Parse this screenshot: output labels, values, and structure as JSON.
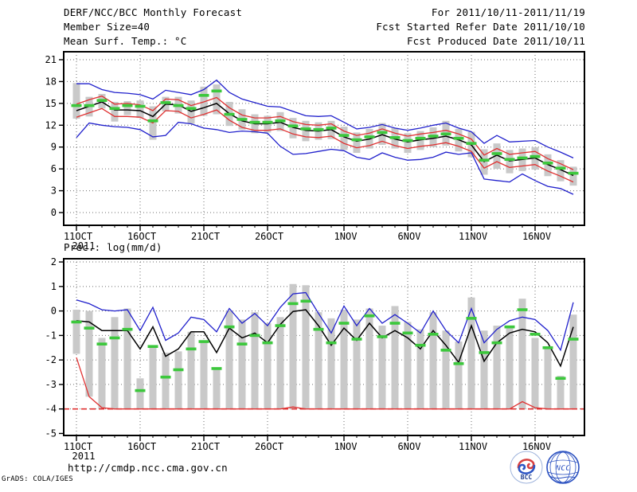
{
  "header": {
    "title": "DERF/NCC/BCC Monthly Forecast",
    "valid_range": "For 2011/10/11-2011/11/19",
    "member_size": "Member Size=40",
    "refer_date": "Fcst Started Refer Date 2011/10/10",
    "variable_label": "Mean Surf. Temp.: °C",
    "produced_date": "Fcst Produced Date 2011/10/11"
  },
  "footer": {
    "url": "http://cmdp.ncc.cma.gov.cn",
    "credit": "GrADS: COLA/IGES",
    "logos": [
      {
        "name": "bcc-logo",
        "label": "BCC"
      },
      {
        "name": "ncc-logo",
        "label": "NCC"
      }
    ]
  },
  "colors": {
    "bar": "#c9c9c9",
    "green_dash": "#3cc83c",
    "red": "#e03030",
    "blue": "#2020cc",
    "black": "#000000",
    "grid": "#6e6e6e"
  },
  "chart_data": [
    {
      "type": "line",
      "title": "Mean Surf. Temp.: °C",
      "ylabel": "°C",
      "ylim": [
        -1.8,
        22.1
      ],
      "yticks": [
        0,
        3,
        6,
        9,
        12,
        15,
        18,
        21
      ],
      "y_grid": [
        0,
        3,
        6,
        9,
        12,
        15,
        18,
        21
      ],
      "grid": true,
      "legend": "none",
      "x_categories": [
        "11OCT",
        "12OCT",
        "13OCT",
        "14OCT",
        "15OCT",
        "16OCT",
        "17OCT",
        "18OCT",
        "19OCT",
        "20OCT",
        "21OCT",
        "22OCT",
        "23OCT",
        "24OCT",
        "25OCT",
        "26OCT",
        "27OCT",
        "28OCT",
        "29OCT",
        "30OCT",
        "31OCT",
        "1NOV",
        "2NOV",
        "3NOV",
        "4NOV",
        "5NOV",
        "6NOV",
        "7NOV",
        "8NOV",
        "9NOV",
        "10NOV",
        "11NOV",
        "12NOV",
        "13NOV",
        "14NOV",
        "15NOV",
        "16NOV",
        "17NOV",
        "18NOV",
        "19NOV"
      ],
      "xticks": [
        {
          "label": "11OCT",
          "index": 0,
          "sub": "2011"
        },
        {
          "label": "16OCT",
          "index": 5
        },
        {
          "label": "21OCT",
          "index": 10
        },
        {
          "label": "26OCT",
          "index": 15
        },
        {
          "label": "1NOV",
          "index": 21
        },
        {
          "label": "6NOV",
          "index": 26
        },
        {
          "label": "11NOV",
          "index": 31
        },
        {
          "label": "16NOV",
          "index": 36
        }
      ],
      "bars": {
        "name": "ensemble-spread-bar",
        "color": "#c9c9c9",
        "low": [
          12.9,
          13.2,
          14.3,
          12.5,
          13.4,
          13.0,
          10.0,
          13.9,
          13.6,
          12.2,
          13.3,
          13.5,
          11.9,
          11.4,
          10.9,
          11.0,
          11.2,
          10.2,
          9.8,
          10.0,
          10.1,
          8.6,
          8.2,
          8.8,
          9.3,
          8.8,
          8.2,
          8.6,
          9.0,
          9.2,
          8.4,
          7.6,
          5.2,
          6.0,
          5.4,
          5.7,
          5.9,
          5.0,
          4.3,
          3.7
        ],
        "high": [
          17.8,
          15.9,
          16.3,
          15.2,
          15.3,
          15.4,
          14.6,
          15.9,
          15.9,
          15.4,
          17.3,
          17.6,
          15.2,
          14.2,
          13.5,
          13.3,
          13.8,
          13.0,
          12.6,
          12.4,
          12.6,
          11.8,
          11.0,
          11.5,
          12.3,
          11.6,
          10.9,
          11.2,
          11.7,
          12.6,
          11.5,
          11.1,
          8.7,
          9.5,
          8.6,
          8.8,
          9.0,
          8.0,
          7.2,
          6.3
        ]
      },
      "series": [
        {
          "name": "ensemble-max",
          "color": "#2020cc",
          "width": 1.3,
          "values": [
            17.7,
            17.7,
            16.9,
            16.5,
            16.4,
            16.2,
            15.6,
            16.8,
            16.5,
            16.2,
            16.9,
            18.2,
            16.5,
            15.6,
            15.1,
            14.6,
            14.5,
            13.9,
            13.3,
            13.2,
            13.3,
            12.4,
            11.5,
            11.7,
            12.1,
            11.6,
            11.3,
            11.6,
            12.0,
            12.3,
            11.6,
            11.1,
            9.5,
            10.6,
            9.7,
            9.8,
            9.9,
            9.0,
            8.3,
            7.5
          ]
        },
        {
          "name": "mean-plus-sd",
          "color": "#e03030",
          "width": 1.3,
          "values": [
            14.9,
            15.5,
            16.0,
            14.9,
            15.0,
            14.8,
            14.0,
            15.6,
            15.5,
            14.7,
            15.2,
            15.8,
            14.4,
            13.4,
            13.0,
            13.0,
            13.2,
            12.5,
            12.1,
            12.0,
            12.2,
            11.2,
            10.6,
            10.9,
            11.5,
            10.9,
            10.5,
            10.8,
            11.0,
            11.3,
            10.8,
            10.1,
            7.9,
            8.8,
            8.0,
            8.2,
            8.4,
            7.4,
            6.7,
            5.9
          ]
        },
        {
          "name": "ensemble-mean",
          "color": "#000000",
          "width": 1.5,
          "values": [
            14.0,
            14.6,
            15.2,
            14.1,
            14.1,
            14.0,
            13.2,
            14.9,
            14.8,
            13.9,
            14.4,
            15.0,
            13.6,
            12.6,
            12.2,
            12.2,
            12.4,
            11.7,
            11.3,
            11.2,
            11.4,
            10.4,
            9.8,
            10.1,
            10.7,
            10.1,
            9.7,
            10.0,
            10.2,
            10.5,
            10.0,
            9.3,
            7.0,
            7.9,
            7.1,
            7.3,
            7.5,
            6.6,
            5.9,
            5.1
          ]
        },
        {
          "name": "mean-minus-sd",
          "color": "#e03030",
          "width": 1.3,
          "values": [
            13.1,
            13.7,
            14.3,
            13.2,
            13.2,
            13.1,
            12.3,
            14.0,
            13.9,
            13.0,
            13.5,
            14.1,
            12.7,
            11.7,
            11.3,
            11.3,
            11.5,
            10.8,
            10.4,
            10.3,
            10.5,
            9.5,
            8.9,
            9.2,
            9.8,
            9.2,
            8.8,
            9.1,
            9.3,
            9.6,
            9.1,
            8.4,
            6.1,
            7.0,
            6.2,
            6.4,
            6.6,
            5.7,
            5.0,
            4.2
          ]
        },
        {
          "name": "ensemble-min",
          "color": "#2020cc",
          "width": 1.3,
          "values": [
            10.3,
            12.3,
            12.0,
            11.8,
            11.7,
            11.4,
            10.4,
            10.6,
            12.4,
            12.2,
            11.6,
            11.4,
            11.0,
            11.2,
            11.1,
            10.9,
            9.1,
            8.0,
            8.1,
            8.4,
            8.7,
            8.5,
            7.6,
            7.3,
            8.2,
            7.6,
            7.2,
            7.3,
            7.6,
            8.3,
            8.0,
            8.2,
            4.6,
            4.4,
            4.2,
            5.3,
            4.4,
            3.6,
            3.3,
            2.5
          ]
        }
      ],
      "dashes": {
        "name": "daily-median-dash",
        "color": "#3cc83c",
        "values": [
          14.7,
          14.7,
          15.4,
          14.3,
          14.7,
          14.6,
          12.6,
          15.1,
          14.7,
          14.3,
          16.1,
          16.7,
          13.5,
          12.8,
          12.4,
          12.4,
          12.6,
          11.9,
          11.5,
          11.4,
          11.6,
          10.6,
          10.0,
          10.4,
          11.0,
          10.3,
          9.9,
          10.2,
          10.5,
          10.8,
          10.2,
          9.5,
          7.2,
          8.1,
          7.3,
          7.5,
          7.7,
          6.8,
          6.1,
          5.4
        ]
      }
    },
    {
      "type": "line",
      "title": "Prec.: log(mm/d)",
      "ylabel": "log(mm/d)",
      "ylim": [
        -5.1,
        2.1
      ],
      "yticks": [
        2,
        1,
        0,
        -1,
        -2,
        -3,
        -4,
        -5
      ],
      "y_grid": [
        2,
        1,
        0,
        -1,
        -2,
        -3,
        -4
      ],
      "grid": true,
      "legend": "none",
      "baseline": {
        "value": -4,
        "color": "#e03030",
        "style": "dashed"
      },
      "x_categories": [
        "11OCT",
        "12OCT",
        "13OCT",
        "14OCT",
        "15OCT",
        "16OCT",
        "17OCT",
        "18OCT",
        "19OCT",
        "20OCT",
        "21OCT",
        "22OCT",
        "23OCT",
        "24OCT",
        "25OCT",
        "26OCT",
        "27OCT",
        "28OCT",
        "29OCT",
        "30OCT",
        "31OCT",
        "1NOV",
        "2NOV",
        "3NOV",
        "4NOV",
        "5NOV",
        "6NOV",
        "7NOV",
        "8NOV",
        "9NOV",
        "10NOV",
        "11NOV",
        "12NOV",
        "13NOV",
        "14NOV",
        "15NOV",
        "16NOV",
        "17NOV",
        "18NOV",
        "19NOV"
      ],
      "xticks": [
        {
          "label": "11OCT",
          "index": 0,
          "sub": "2011"
        },
        {
          "label": "16OCT",
          "index": 5
        },
        {
          "label": "21OCT",
          "index": 10
        },
        {
          "label": "26OCT",
          "index": 15
        },
        {
          "label": "1NOV",
          "index": 21
        },
        {
          "label": "6NOV",
          "index": 26
        },
        {
          "label": "11NOV",
          "index": 31
        },
        {
          "label": "16NOV",
          "index": 36
        }
      ],
      "bars": {
        "name": "ensemble-spread-bar",
        "color": "#c9c9c9",
        "low": [
          -1.75,
          -3.5,
          -4,
          -4,
          -4,
          -4,
          -4,
          -4,
          -4,
          -4,
          -4,
          -4,
          -4,
          -4,
          -4,
          -4,
          -4,
          -4,
          -4,
          -4,
          -4,
          -4,
          -4,
          -4,
          -4,
          -4,
          -4,
          -4,
          -4,
          -4,
          -4,
          -4,
          -4,
          -4,
          -4,
          -4,
          -4,
          -4,
          -4,
          -4
        ],
        "high": [
          0.05,
          0.0,
          -1.1,
          -0.25,
          0.1,
          -2.75,
          -1.45,
          -1.7,
          -1.65,
          -0.85,
          -1.2,
          -2.35,
          0.0,
          -0.35,
          -0.05,
          -0.5,
          -0.25,
          1.1,
          1.05,
          -0.05,
          -0.3,
          0.05,
          -0.35,
          0.1,
          -0.6,
          0.2,
          -0.45,
          -0.75,
          -0.05,
          -0.8,
          -1.25,
          0.55,
          -0.8,
          -0.6,
          -0.65,
          0.5,
          -1.1,
          -1.45,
          -2.65,
          -0.15
        ]
      },
      "series": [
        {
          "name": "ensemble-max",
          "color": "#2020cc",
          "width": 1.3,
          "values": [
            0.45,
            0.3,
            0.05,
            0.0,
            0.05,
            -0.8,
            0.15,
            -1.2,
            -0.9,
            -0.25,
            -0.35,
            -0.85,
            0.1,
            -0.5,
            -0.1,
            -0.6,
            0.15,
            0.7,
            0.75,
            -0.1,
            -0.9,
            0.2,
            -0.6,
            0.1,
            -0.5,
            -0.15,
            -0.5,
            -0.9,
            0.0,
            -0.8,
            -1.3,
            0.1,
            -1.3,
            -0.75,
            -0.4,
            -0.25,
            -0.35,
            -0.8,
            -1.6,
            0.35
          ]
        },
        {
          "name": "ensemble-mean",
          "color": "#000000",
          "width": 1.5,
          "values": [
            -0.4,
            -0.45,
            -0.8,
            -0.8,
            -0.8,
            -1.55,
            -0.65,
            -1.85,
            -1.55,
            -0.85,
            -0.85,
            -1.7,
            -0.7,
            -1.1,
            -0.9,
            -1.3,
            -0.55,
            -0.02,
            0.05,
            -0.6,
            -1.4,
            -0.7,
            -1.2,
            -0.5,
            -1.1,
            -0.8,
            -1.1,
            -1.55,
            -0.8,
            -1.4,
            -2.1,
            -0.6,
            -2.05,
            -1.3,
            -0.9,
            -0.75,
            -0.85,
            -1.3,
            -2.25,
            -0.65
          ]
        },
        {
          "name": "ensemble-min",
          "color": "#e03030",
          "width": 1.3,
          "values": [
            -1.9,
            -3.5,
            -3.95,
            -4,
            -4,
            -4,
            -4,
            -4,
            -4,
            -4,
            -4,
            -4,
            -4,
            -4,
            -4,
            -4,
            -4,
            -3.92,
            -4,
            -4,
            -4,
            -4,
            -4,
            -4,
            -4,
            -4,
            -4,
            -4,
            -4,
            -4,
            -4,
            -4,
            -4,
            -4,
            -4,
            -3.7,
            -3.95,
            -4,
            -4,
            -4
          ]
        },
        {
          "name": "daily-green-dash",
          "color": "#3cc83c",
          "width": 3.6,
          "dash_marks": true,
          "values": [
            -0.45,
            -0.7,
            -1.35,
            -1.1,
            -0.75,
            -3.25,
            -1.45,
            -2.7,
            -2.4,
            -1.55,
            -1.25,
            -2.35,
            -0.65,
            -1.35,
            -1.0,
            -1.3,
            -0.6,
            0.3,
            0.4,
            -0.75,
            -1.3,
            -0.5,
            -1.15,
            -0.2,
            -1.05,
            -0.5,
            -0.9,
            -1.4,
            -0.95,
            -1.6,
            -2.15,
            -0.3,
            -1.7,
            -1.3,
            -0.65,
            0.05,
            -0.95,
            -1.5,
            -2.75,
            -1.15
          ]
        }
      ],
      "dashes": {
        "name": "daily-median-dash",
        "color": "#3cc83c",
        "values": [
          -0.45,
          -0.7,
          -1.35,
          -1.1,
          -0.75,
          -3.25,
          -1.45,
          -2.7,
          -2.4,
          -1.55,
          -1.25,
          -2.35,
          -0.65,
          -1.35,
          -1.0,
          -1.3,
          -0.6,
          0.3,
          0.4,
          -0.75,
          -1.3,
          -0.5,
          -1.15,
          -0.2,
          -1.05,
          -0.5,
          -0.9,
          -1.4,
          -0.95,
          -1.6,
          -2.15,
          -0.3,
          -1.7,
          -1.3,
          -0.65,
          0.05,
          -0.95,
          -1.5,
          -2.75,
          -1.15
        ]
      }
    }
  ]
}
